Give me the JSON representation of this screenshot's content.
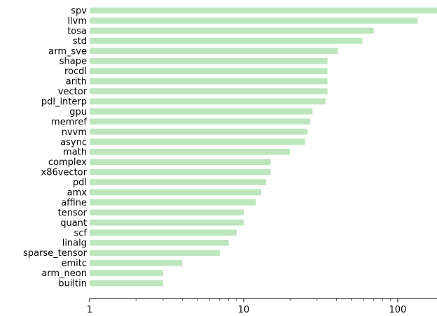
{
  "chart_data": {
    "type": "bar",
    "orientation": "horizontal",
    "x_scale": "log",
    "xlim": [
      1,
      180
    ],
    "grid": false,
    "categories": [
      "spv",
      "llvm",
      "tosa",
      "std",
      "arm_sve",
      "shape",
      "rocdl",
      "arith",
      "vector",
      "pdl_interp",
      "gpu",
      "memref",
      "nvvm",
      "async",
      "math",
      "complex",
      "x86vector",
      "pdl",
      "amx",
      "affine",
      "tensor",
      "quant",
      "scf",
      "linalg",
      "sparse_tensor",
      "emitc",
      "arm_neon",
      "builtin"
    ],
    "values": [
      180,
      135,
      70,
      59,
      41,
      35,
      35,
      35,
      35,
      34,
      28,
      27,
      26,
      25,
      20,
      15,
      15,
      14,
      13,
      12,
      10,
      10,
      9,
      8,
      7,
      4,
      3,
      3
    ],
    "x_ticks": [
      {
        "value": 1,
        "label": "1"
      },
      {
        "value": 10,
        "label": "10"
      },
      {
        "value": 100,
        "label": "100"
      }
    ],
    "bar_color": "#bde6bd"
  }
}
